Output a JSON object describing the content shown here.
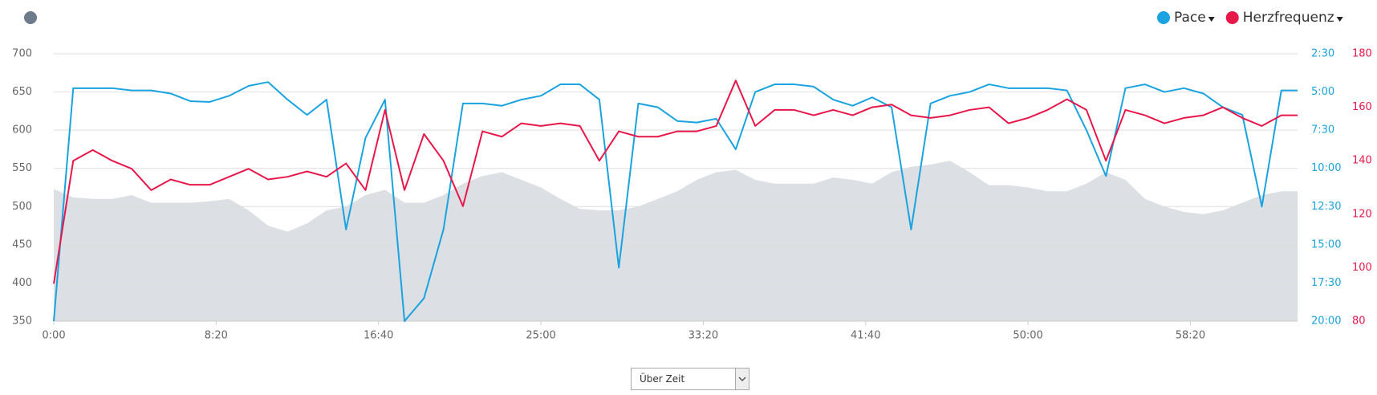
{
  "chart_data": {
    "type": "line",
    "x": [
      0,
      60,
      120,
      180,
      240,
      300,
      360,
      420,
      480,
      540,
      600,
      660,
      720,
      780,
      840,
      900,
      960,
      1020,
      1080,
      1140,
      1200,
      1260,
      1320,
      1380,
      1440,
      1500,
      1560,
      1620,
      1680,
      1740,
      1800,
      1860,
      1920,
      1980,
      2040,
      2100,
      2160,
      2220,
      2280,
      2340,
      2400,
      2460,
      2520,
      2580,
      2640,
      2700,
      2760,
      2820,
      2880,
      2940,
      3000,
      3060,
      3120,
      3180,
      3240,
      3300,
      3360,
      3420,
      3480,
      3540,
      3600,
      3660,
      3720,
      3780,
      3830
    ],
    "xlim": [
      0,
      3830
    ],
    "xticks": [
      {
        "value": 0,
        "label": "0:00"
      },
      {
        "value": 500,
        "label": "8:20"
      },
      {
        "value": 1000,
        "label": "16:40"
      },
      {
        "value": 1500,
        "label": "25:00"
      },
      {
        "value": 2000,
        "label": "33:20"
      },
      {
        "value": 2500,
        "label": "41:40"
      },
      {
        "value": 3000,
        "label": "50:00"
      },
      {
        "value": 3500,
        "label": "58:20"
      }
    ],
    "ylim": [
      350,
      700
    ],
    "yticks": [
      350,
      400,
      450,
      500,
      550,
      600,
      650,
      700
    ],
    "y2lim": [
      20,
      2.5
    ],
    "y2ticks": [
      {
        "value": 2.5,
        "label": "2:30"
      },
      {
        "value": 5,
        "label": "5:00"
      },
      {
        "value": 7.5,
        "label": "7:30"
      },
      {
        "value": 10,
        "label": "10:00"
      },
      {
        "value": 12.5,
        "label": "12:30"
      },
      {
        "value": 15,
        "label": "15:00"
      },
      {
        "value": 17.5,
        "label": "17:30"
      },
      {
        "value": 20,
        "label": "20:00"
      }
    ],
    "y3lim": [
      80,
      180
    ],
    "y3ticks": [
      80,
      100,
      120,
      140,
      160,
      180
    ],
    "grid": true,
    "legend": "top-right",
    "area": {
      "color": "#dcdfe3",
      "values": [
        523,
        512,
        510,
        510,
        515,
        505,
        505,
        505,
        507,
        510,
        495,
        475,
        467,
        478,
        495,
        500,
        515,
        522,
        505,
        505,
        515,
        530,
        540,
        545,
        535,
        525,
        510,
        497,
        495,
        495,
        500,
        510,
        520,
        535,
        545,
        548,
        535,
        530,
        530,
        530,
        538,
        535,
        530,
        545,
        552,
        555,
        560,
        545,
        528,
        528,
        525,
        520,
        520,
        530,
        545,
        535,
        510,
        500,
        493,
        490,
        495,
        505,
        515,
        520,
        520
      ]
    },
    "series": [
      {
        "name": "Pace",
        "color": "#1aa3e0",
        "axis": "y2",
        "values": [
          20,
          4.75,
          4.75,
          4.75,
          4.9,
          4.9,
          5.1,
          5.6,
          5.65,
          5.25,
          4.6,
          4.35,
          5.5,
          6.5,
          5.5,
          14,
          8,
          5.5,
          20,
          18.5,
          14,
          5.75,
          5.75,
          5.9,
          5.5,
          5.25,
          4.5,
          4.5,
          5.5,
          16.5,
          5.75,
          6,
          6.9,
          7,
          6.75,
          8.75,
          5,
          4.5,
          4.5,
          4.65,
          5.5,
          5.9,
          5.35,
          6,
          14,
          5.75,
          5.25,
          5,
          4.5,
          4.75,
          4.75,
          4.75,
          4.9,
          7.5,
          10.5,
          4.75,
          4.5,
          5,
          4.75,
          5.1,
          6,
          6.5,
          12.5,
          4.9,
          4.9
        ]
      },
      {
        "name": "Herzfrequenz",
        "color": "#e8174a",
        "axis": "y3",
        "values": [
          94,
          140,
          144,
          140,
          137,
          129,
          133,
          131,
          131,
          134,
          137,
          133,
          134,
          136,
          134,
          139,
          129,
          159,
          129,
          150,
          140,
          123,
          151,
          149,
          154,
          153,
          154,
          153,
          140,
          151,
          149,
          149,
          151,
          151,
          153,
          170,
          153,
          159,
          159,
          157,
          159,
          157,
          160,
          161,
          157,
          156,
          157,
          159,
          160,
          154,
          156,
          159,
          163,
          159,
          140,
          159,
          157,
          154,
          156,
          157,
          160,
          156,
          153,
          157,
          157
        ]
      }
    ]
  },
  "controls": {
    "mode_select": "Über Zeit"
  }
}
